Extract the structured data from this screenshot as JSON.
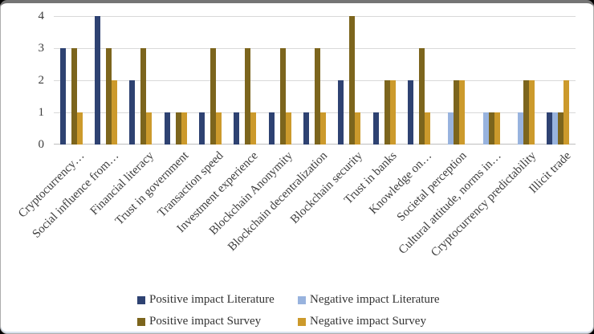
{
  "chart_data": {
    "type": "bar",
    "title": "",
    "xlabel": "",
    "ylabel": "",
    "ylim": [
      0,
      4
    ],
    "y_ticks": [
      0,
      1,
      2,
      3,
      4
    ],
    "grid": true,
    "legend_position": "bottom",
    "categories": [
      "Cryptocurrency…",
      "Social influence from…",
      "Financial literacy",
      "Trust in government",
      "Transaction speed",
      "Investment experience",
      "Blockchain Anonymity",
      "Blockchain decentralization",
      "Blockchain security",
      "Trust in banks",
      "Knowledge on…",
      "Societal perception",
      "Cultural attitude, norms in…",
      "Cryptocurrency predictability",
      "Illicit trade"
    ],
    "series": [
      {
        "name": "Positive impact Literature",
        "color": "#2E4272",
        "values": [
          3,
          4,
          2,
          1,
          1,
          1,
          1,
          1,
          2,
          1,
          2,
          0,
          0,
          0,
          1
        ]
      },
      {
        "name": "Negative impact Literature",
        "color": "#98B3DE",
        "values": [
          0,
          0,
          0,
          0,
          0,
          0,
          0,
          0,
          0,
          0,
          0,
          1,
          1,
          1,
          1
        ]
      },
      {
        "name": "Positive impact Survey",
        "color": "#7C651D",
        "values": [
          3,
          3,
          3,
          1,
          3,
          3,
          3,
          3,
          4,
          2,
          3,
          2,
          1,
          2,
          1
        ]
      },
      {
        "name": "Negative impact Survey",
        "color": "#CC9A2C",
        "values": [
          1,
          2,
          1,
          1,
          1,
          1,
          1,
          1,
          1,
          2,
          1,
          2,
          1,
          2,
          2
        ]
      }
    ],
    "colors": {
      "gridline": "#d9d9d9",
      "axis_line": "#bfbfbf",
      "text": "#3d3d3d"
    }
  }
}
